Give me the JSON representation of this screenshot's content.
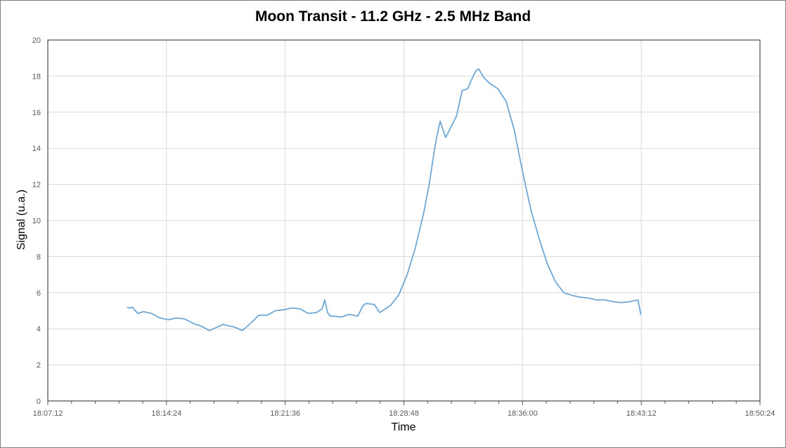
{
  "chart_data": {
    "type": "line",
    "title": "Moon Transit - 11.2 GHz - 2.5 MHz Band",
    "xlabel": "Time",
    "ylabel": "Signal (u.a.)",
    "x_ticks": [
      "18:07:12",
      "18:14:24",
      "18:21:36",
      "18:28:48",
      "18:36:00",
      "18:43:12",
      "18:50:24"
    ],
    "y_ticks": [
      0,
      2,
      4,
      6,
      8,
      10,
      12,
      14,
      16,
      18,
      20
    ],
    "xlim": [
      "18:07:12",
      "18:50:24"
    ],
    "ylim": [
      0,
      20
    ],
    "grid": true,
    "legend": "none",
    "line_color": "#6fa8d6",
    "series": [
      {
        "x": [
          "18:12:00",
          "18:12:10",
          "18:12:20",
          "18:12:30",
          "18:12:40",
          "18:12:50",
          "18:13:00",
          "18:13:30",
          "18:14:00",
          "18:14:30",
          "18:15:00",
          "18:15:30",
          "18:16:00",
          "18:16:30",
          "18:17:00",
          "18:17:30",
          "18:17:50",
          "18:18:00",
          "18:18:30",
          "18:19:00",
          "18:19:30",
          "18:20:00",
          "18:20:30",
          "18:21:00",
          "18:21:30",
          "18:22:00",
          "18:22:30",
          "18:23:00",
          "18:23:30",
          "18:23:50",
          "18:24:00",
          "18:24:10",
          "18:24:20",
          "18:24:30",
          "18:25:00",
          "18:25:30",
          "18:26:00",
          "18:26:20",
          "18:26:30",
          "18:27:00",
          "18:27:20",
          "18:27:40",
          "18:28:00",
          "18:28:30",
          "18:29:00",
          "18:29:30",
          "18:30:00",
          "18:30:20",
          "18:30:30",
          "18:30:40",
          "18:30:50",
          "18:31:00",
          "18:31:20",
          "18:31:40",
          "18:32:00",
          "18:32:10",
          "18:32:20",
          "18:32:40",
          "18:33:00",
          "18:33:10",
          "18:33:20",
          "18:33:40",
          "18:34:00",
          "18:34:30",
          "18:35:00",
          "18:35:30",
          "18:36:00",
          "18:36:30",
          "18:37:00",
          "18:37:30",
          "18:38:00",
          "18:38:30",
          "18:39:00",
          "18:39:30",
          "18:40:00",
          "18:40:30",
          "18:41:00",
          "18:41:30",
          "18:42:00",
          "18:42:30",
          "18:43:00",
          "18:43:10",
          "18:43:12"
        ],
        "y": [
          5.2,
          5.15,
          5.2,
          5.0,
          4.85,
          4.9,
          4.95,
          4.85,
          4.6,
          4.5,
          4.6,
          4.55,
          4.3,
          4.15,
          3.9,
          4.1,
          4.25,
          4.2,
          4.1,
          3.9,
          4.3,
          4.75,
          4.75,
          5.0,
          5.05,
          5.15,
          5.1,
          4.85,
          4.9,
          5.1,
          5.6,
          4.9,
          4.7,
          4.7,
          4.65,
          4.8,
          4.7,
          5.3,
          5.4,
          5.35,
          4.9,
          5.1,
          5.3,
          5.9,
          7.0,
          8.5,
          10.4,
          12.0,
          13.0,
          14.0,
          14.8,
          15.5,
          14.6,
          15.2,
          15.8,
          16.5,
          17.2,
          17.3,
          18.0,
          18.3,
          18.4,
          17.9,
          17.6,
          17.3,
          16.6,
          15.0,
          12.7,
          10.6,
          9.0,
          7.6,
          6.6,
          6.0,
          5.85,
          5.75,
          5.7,
          5.6,
          5.6,
          5.5,
          5.45,
          5.5,
          5.6,
          4.8,
          4.8
        ]
      }
    ]
  }
}
